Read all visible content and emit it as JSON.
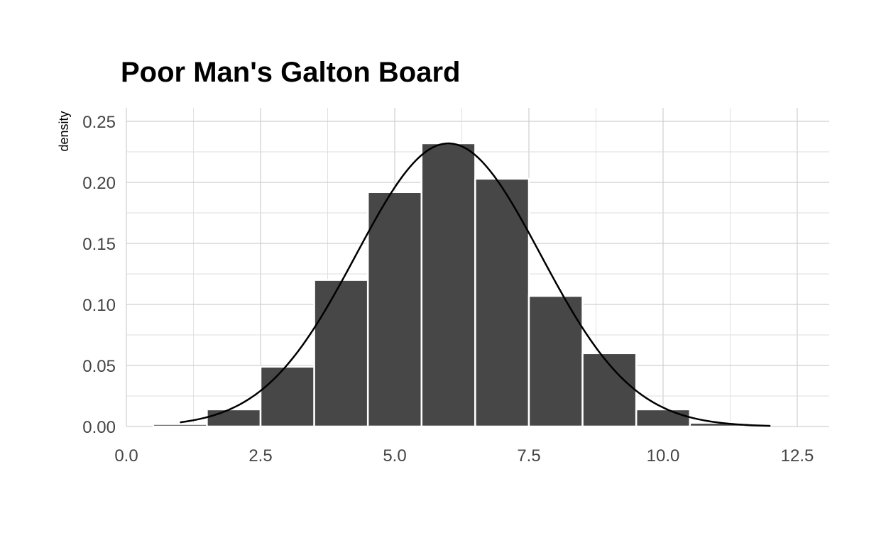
{
  "chart_data": {
    "type": "bar",
    "title": "Poor Man's Galton Board",
    "xlabel": "",
    "ylabel": "density",
    "xlim": [
      0,
      12.5
    ],
    "ylim": [
      0,
      0.25
    ],
    "x_ticks": [
      "0.0",
      "2.5",
      "5.0",
      "7.5",
      "10.0",
      "12.5"
    ],
    "y_ticks": [
      "0.00",
      "0.05",
      "0.10",
      "0.15",
      "0.20",
      "0.25"
    ],
    "grid": true,
    "bars": [
      {
        "x": 1,
        "value": 0.002
      },
      {
        "x": 2,
        "value": 0.014
      },
      {
        "x": 3,
        "value": 0.049
      },
      {
        "x": 4,
        "value": 0.12
      },
      {
        "x": 5,
        "value": 0.192
      },
      {
        "x": 6,
        "value": 0.232
      },
      {
        "x": 7,
        "value": 0.203
      },
      {
        "x": 8,
        "value": 0.107
      },
      {
        "x": 9,
        "value": 0.06
      },
      {
        "x": 10,
        "value": 0.014
      },
      {
        "x": 11,
        "value": 0.003
      }
    ],
    "bin_width": 1,
    "density_curve": {
      "type": "normal",
      "mean": 6,
      "sd": 1.72,
      "x_range": [
        1,
        12
      ]
    },
    "colors": {
      "bar_fill": "#474747",
      "bar_outline": "#ffffff",
      "curve": "#000000",
      "grid": "#cfcfcf"
    }
  }
}
